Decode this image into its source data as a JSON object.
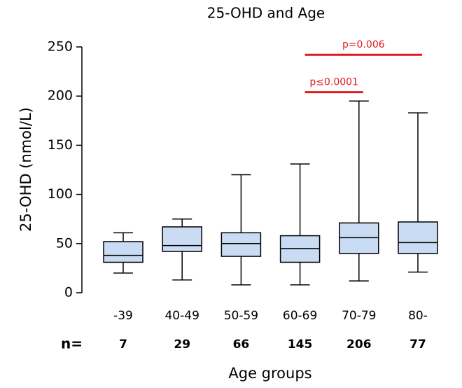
{
  "chart_data": {
    "type": "box",
    "title": "25-OHD and Age",
    "y_label": "25-OHD (nmol/L)",
    "x_label": "Age groups",
    "categories": [
      "-39",
      "40-49",
      "50-59",
      "60-69",
      "70-79",
      "80-"
    ],
    "boxes": [
      {
        "min": 20,
        "q1": 31,
        "median": 38,
        "q3": 52,
        "max": 61
      },
      {
        "min": 13,
        "q1": 42,
        "median": 48,
        "q3": 67,
        "max": 75
      },
      {
        "min": 8,
        "q1": 37,
        "median": 50,
        "q3": 61,
        "max": 120
      },
      {
        "min": 8,
        "q1": 31,
        "median": 45,
        "q3": 58,
        "max": 131
      },
      {
        "min": 12,
        "q1": 40,
        "median": 56,
        "q3": 71,
        "max": 195
      },
      {
        "min": 21,
        "q1": 40,
        "median": 51,
        "q3": 72,
        "max": 183
      }
    ],
    "color": "#cadcf4",
    "n_label": "n=",
    "n": [
      7,
      29,
      66,
      145,
      206,
      77
    ],
    "annotations": [
      {
        "text": "p≤0.0001",
        "from": "60-69",
        "to": "70-79",
        "y": 204,
        "color": "#e0191e"
      },
      {
        "text": "p=0.006",
        "from": "60-69",
        "to": "80-",
        "y": 242,
        "color": "#e0191e"
      }
    ],
    "ylim": [
      0,
      250
    ],
    "yticks": [
      0,
      50,
      100,
      150,
      200,
      250
    ]
  }
}
